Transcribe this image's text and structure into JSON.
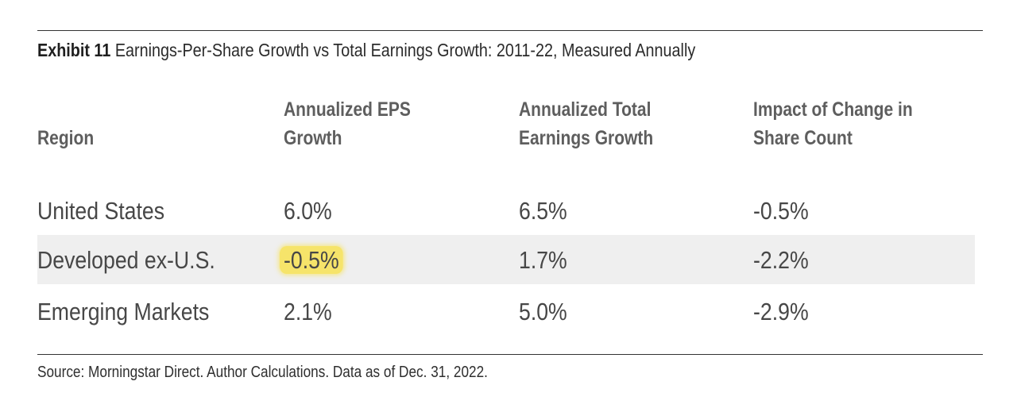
{
  "exhibit": {
    "label": "Exhibit 11",
    "title": "Earnings-Per-Share Growth vs Total Earnings Growth: 2011-22, Measured Annually"
  },
  "table": {
    "headers": [
      {
        "lines": [
          "Region"
        ]
      },
      {
        "lines": [
          "Annualized EPS",
          "Growth"
        ]
      },
      {
        "lines": [
          "Annualized Total",
          "Earnings Growth"
        ]
      },
      {
        "lines": [
          "Impact of Change in",
          "Share Count"
        ]
      }
    ],
    "rows": [
      {
        "region": "United States",
        "eps_growth": "6.0%",
        "total_earnings_growth": "6.5%",
        "share_count_impact": "-0.5%"
      },
      {
        "region": "Developed ex-U.S.",
        "eps_growth": "-0.5%",
        "total_earnings_growth": "1.7%",
        "share_count_impact": "-2.2%"
      },
      {
        "region": "Emerging Markets",
        "eps_growth": "2.1%",
        "total_earnings_growth": "5.0%",
        "share_count_impact": "-2.9%"
      }
    ],
    "highlighted_cell": {
      "row": 1,
      "column": "eps_growth",
      "color": "#f6e46a"
    },
    "shaded_row_color": "#efefef"
  },
  "source": "Source: Morningstar Direct. Author Calculations. Data as of Dec. 31, 2022."
}
